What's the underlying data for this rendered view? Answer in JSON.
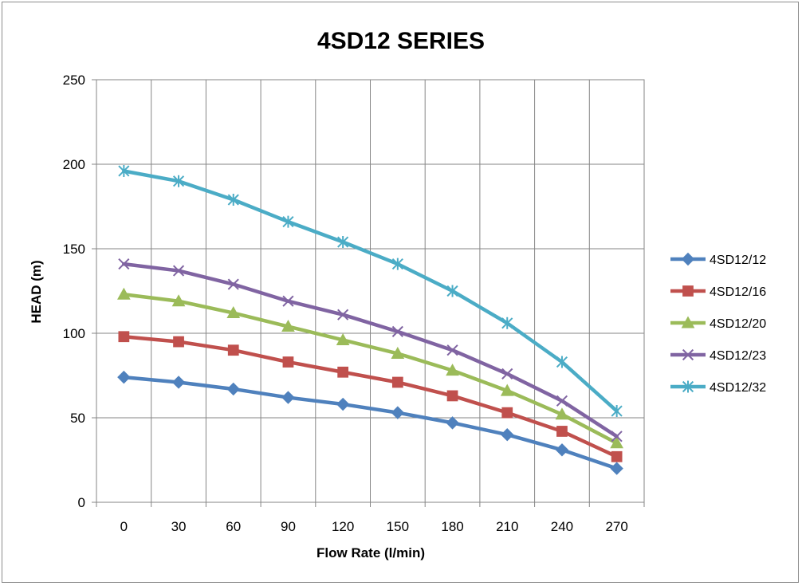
{
  "chart_data": {
    "type": "line",
    "title": "4SD12 SERIES",
    "xlabel": "Flow Rate (l/min)",
    "ylabel": "HEAD (m)",
    "categories": [
      "0",
      "30",
      "60",
      "90",
      "120",
      "150",
      "180",
      "210",
      "240",
      "270"
    ],
    "ylim": [
      0,
      250
    ],
    "yticks": [
      0,
      50,
      100,
      150,
      200,
      250
    ],
    "grid": true,
    "legend_position": "right",
    "series": [
      {
        "name": "4SD12/12",
        "color": "#4f81bd",
        "marker": "diamond",
        "values": [
          74,
          71,
          67,
          62,
          58,
          53,
          47,
          40,
          31,
          20
        ]
      },
      {
        "name": "4SD12/16",
        "color": "#c0504d",
        "marker": "square",
        "values": [
          98,
          95,
          90,
          83,
          77,
          71,
          63,
          53,
          42,
          27
        ]
      },
      {
        "name": "4SD12/20",
        "color": "#9bbb59",
        "marker": "triangle",
        "values": [
          123,
          119,
          112,
          104,
          96,
          88,
          78,
          66,
          52,
          35
        ]
      },
      {
        "name": "4SD12/23",
        "color": "#8064a2",
        "marker": "x",
        "values": [
          141,
          137,
          129,
          119,
          111,
          101,
          90,
          76,
          60,
          39
        ]
      },
      {
        "name": "4SD12/32",
        "color": "#4bacc6",
        "marker": "star",
        "values": [
          196,
          190,
          179,
          166,
          154,
          141,
          125,
          106,
          83,
          54
        ]
      }
    ]
  }
}
